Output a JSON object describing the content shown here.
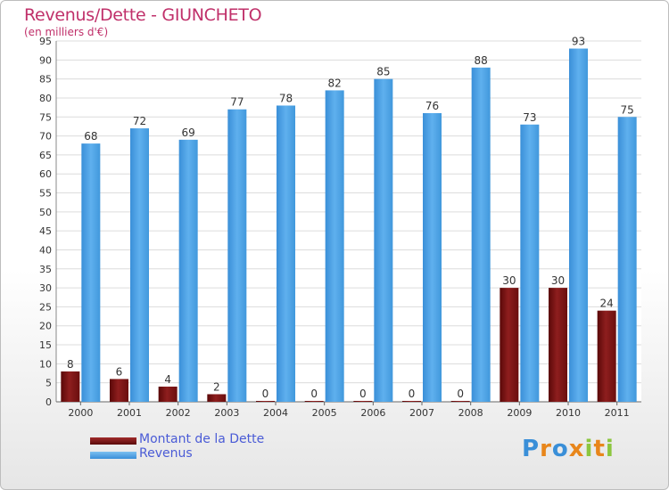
{
  "header": {
    "title": "Revenus/Dette - GIUNCHETO",
    "subtitle": "(en milliers d'€)"
  },
  "chart_data": {
    "type": "bar",
    "title": "Revenus/Dette - GIUNCHETO",
    "ylabel": "(en milliers d'€)",
    "xlabel": "",
    "categories": [
      "2000",
      "2001",
      "2002",
      "2003",
      "2004",
      "2005",
      "2006",
      "2007",
      "2008",
      "2009",
      "2010",
      "2011"
    ],
    "series": [
      {
        "name": "Montant de la Dette",
        "color": "#7a1414",
        "values": [
          8,
          6,
          4,
          2,
          0,
          0,
          0,
          0,
          0,
          30,
          30,
          24
        ]
      },
      {
        "name": "Revenus",
        "color": "#4aa3e6",
        "values": [
          68,
          72,
          69,
          77,
          78,
          82,
          85,
          76,
          88,
          73,
          93,
          75
        ]
      }
    ],
    "ylim": [
      0,
      95
    ],
    "yticks": [
      0,
      5,
      10,
      15,
      20,
      25,
      30,
      35,
      40,
      45,
      50,
      55,
      60,
      65,
      70,
      75,
      80,
      85,
      90,
      95
    ],
    "grid": true,
    "legend": "bottom-left"
  },
  "legend": {
    "items": [
      {
        "label": "Montant de la Dette",
        "color": "#7a1414"
      },
      {
        "label": "Revenus",
        "color": "#4aa3e6"
      }
    ]
  },
  "brand": {
    "letters": [
      "P",
      "r",
      "o",
      "x",
      "i",
      "t",
      "i"
    ],
    "colors": [
      "#3a8fd8",
      "#e8861b",
      "#3a8fd8",
      "#e8861b",
      "#8cc63f",
      "#e8861b",
      "#8cc63f"
    ]
  }
}
